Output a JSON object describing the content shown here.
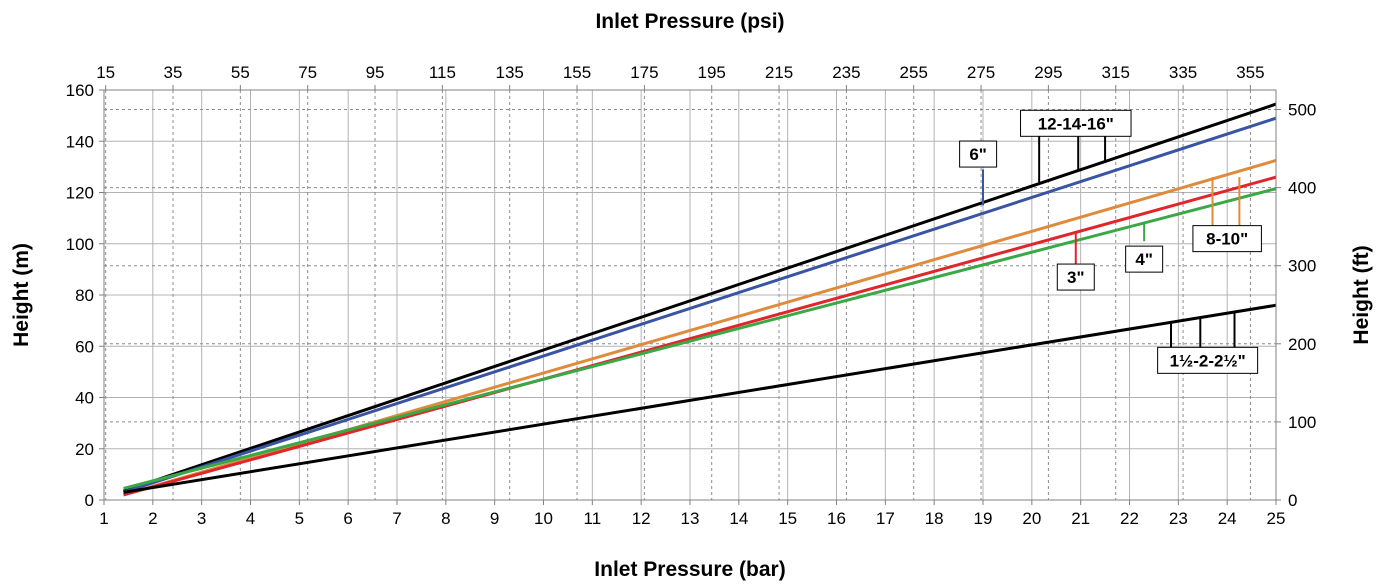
{
  "chart_data": {
    "type": "line",
    "title": "",
    "xlabel": "Inlet Pressure (bar)",
    "x2label": "Inlet Pressure (psi)",
    "ylabel": "Height (m)",
    "y2label": "Height (ft)",
    "xlim": [
      1,
      25
    ],
    "ylim": [
      0,
      160
    ],
    "x2lim": [
      14.5,
      362.6
    ],
    "y2lim": [
      0,
      525
    ],
    "grid": true,
    "x_ticks": [
      1,
      2,
      3,
      4,
      5,
      6,
      7,
      8,
      9,
      10,
      11,
      12,
      13,
      14,
      15,
      16,
      17,
      18,
      19,
      20,
      21,
      22,
      23,
      24,
      25
    ],
    "x_tick_labels": [
      "1",
      "2",
      "3",
      "4",
      "5",
      "6",
      "7",
      "8",
      "9",
      "10",
      "11",
      "12",
      "13",
      "14",
      "15",
      "16",
      "17",
      "18",
      "19",
      "20",
      "21",
      "22",
      "23",
      "24",
      "25"
    ],
    "y_ticks": [
      0,
      20,
      40,
      60,
      80,
      100,
      120,
      140,
      160
    ],
    "y_tick_labels": [
      "0",
      "20",
      "40",
      "60",
      "80",
      "100",
      "120",
      "140",
      "160"
    ],
    "x2_ticks": [
      15,
      35,
      55,
      75,
      95,
      115,
      135,
      155,
      175,
      195,
      215,
      235,
      255,
      275,
      295,
      315,
      335,
      355
    ],
    "x2_tick_labels": [
      "15",
      "35",
      "55",
      "75",
      "95",
      "115",
      "135",
      "155",
      "175",
      "195",
      "215",
      "235",
      "255",
      "275",
      "295",
      "315",
      "335",
      "355"
    ],
    "y2_ticks": [
      0,
      100,
      200,
      300,
      400,
      500
    ],
    "y2_tick_labels": [
      "0",
      "100",
      "200",
      "300",
      "400",
      "500"
    ],
    "series": [
      {
        "color": "#000000",
        "x": [
          1.4,
          25
        ],
        "y": [
          3.5,
          154.5
        ]
      },
      {
        "color": "#3a54a4",
        "x": [
          1.4,
          25
        ],
        "y": [
          3.0,
          149.0
        ]
      },
      {
        "color": "#e08a3c",
        "x": [
          1.4,
          25
        ],
        "y": [
          2.0,
          132.5
        ]
      },
      {
        "color": "#e0252b",
        "x": [
          1.4,
          25
        ],
        "y": [
          2.0,
          126.0
        ]
      },
      {
        "color": "#39a845",
        "x": [
          1.4,
          25
        ],
        "y": [
          4.5,
          121.5
        ]
      },
      {
        "color": "#000000",
        "x": [
          1.4,
          25
        ],
        "y": [
          3.0,
          76.0
        ]
      }
    ],
    "annotations": [
      {
        "text": "6\"",
        "color": "#3a54a4",
        "x_bar": 19.0,
        "tx": 18.9,
        "ty": 135,
        "pointers": [
          {
            "x": 19.0,
            "y_top": 129,
            "y_bottom": 115
          }
        ]
      },
      {
        "text": "12-14-16\"",
        "color": "#000000",
        "tx": 20.9,
        "ty": 147,
        "pointers": [
          {
            "x": 20.15,
            "y_top": 143,
            "y_bottom": 124
          },
          {
            "x": 20.95,
            "y_top": 143,
            "y_bottom": 129
          },
          {
            "x": 21.5,
            "y_top": 143,
            "y_bottom": 132
          }
        ]
      },
      {
        "text": "3\"",
        "color": "#e0252b",
        "tx": 20.9,
        "ty": 87,
        "pointers": [
          {
            "x": 20.9,
            "y_top": 104,
            "y_bottom": 92
          }
        ]
      },
      {
        "text": "4\"",
        "color": "#39a845",
        "tx": 22.3,
        "ty": 94,
        "pointers": [
          {
            "x": 22.3,
            "y_top": 108,
            "y_bottom": 101
          }
        ]
      },
      {
        "text": "8-10\"",
        "color": "#e08a3c",
        "tx": 24.0,
        "ty": 102,
        "pointers": [
          {
            "x": 23.7,
            "y_top": 126,
            "y_bottom": 107
          },
          {
            "x": 24.25,
            "y_top": 126,
            "y_bottom": 107
          }
        ]
      },
      {
        "text": "1½-2-2½\"",
        "color": "#000000",
        "tx": 23.6,
        "ty": 54.5,
        "pointers": [
          {
            "x": 22.85,
            "y_top": 69,
            "y_bottom": 59
          },
          {
            "x": 23.45,
            "y_top": 71,
            "y_bottom": 59
          },
          {
            "x": 24.15,
            "y_top": 73,
            "y_bottom": 59
          }
        ]
      }
    ]
  }
}
